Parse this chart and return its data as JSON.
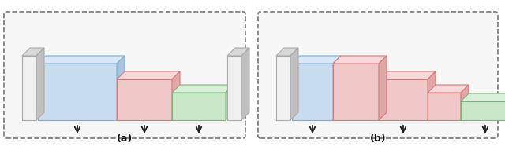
{
  "fig_width": 6.4,
  "fig_height": 1.91,
  "dpi": 100,
  "background": "#ffffff",
  "label_a": "(a)",
  "label_b": "(b)",
  "blue_fill": "#c8dcf0",
  "blue_edge": "#7aaed4",
  "blue_top": "#d8e8f8",
  "blue_right": "#a8c4e0",
  "red_fill": "#f0c8c8",
  "red_edge": "#d47a7a",
  "red_top": "#f8d8d8",
  "red_right": "#e0a8a8",
  "green_fill": "#c8e8c8",
  "green_edge": "#7ab47a",
  "green_top": "#d8f0d8",
  "green_right": "#a8d0a8",
  "slab_front": "#f0f0f0",
  "slab_top": "#d8d8d8",
  "slab_right": "#c0c0c0",
  "slab_edge": "#aaaaaa",
  "arrow_color": "#222222",
  "panel_edge": "#777777"
}
